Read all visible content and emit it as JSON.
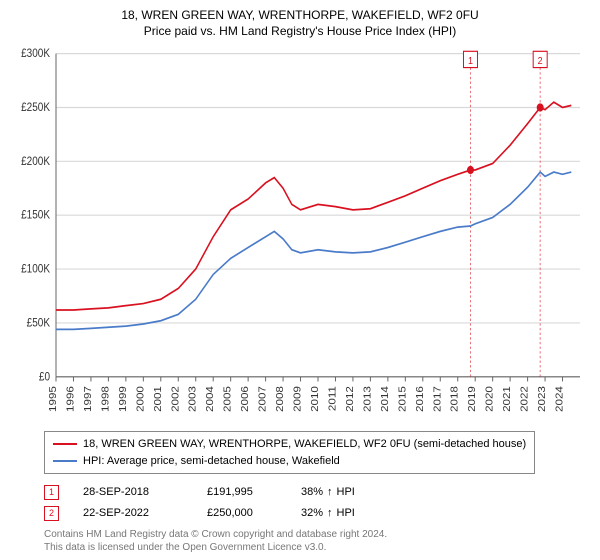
{
  "title": "18, WREN GREEN WAY, WRENTHORPE, WAKEFIELD, WF2 0FU",
  "subtitle": "Price paid vs. HM Land Registry's House Price Index (HPI)",
  "chart": {
    "type": "line",
    "background_color": "#ffffff",
    "grid_color": "#d9d9d9",
    "axis_color": "#666666",
    "title_fontsize": 12,
    "label_fontsize": 10,
    "y_axis": {
      "min": 0,
      "max": 300000,
      "ticks": [
        0,
        50000,
        100000,
        150000,
        200000,
        250000,
        300000
      ],
      "tick_labels": [
        "£0",
        "£50K",
        "£100K",
        "£150K",
        "£200K",
        "£250K",
        "£300K"
      ]
    },
    "x_axis": {
      "min": 1995,
      "max": 2025,
      "ticks": [
        1995,
        1996,
        1997,
        1998,
        1999,
        2000,
        2001,
        2002,
        2003,
        2004,
        2005,
        2006,
        2007,
        2008,
        2009,
        2010,
        2011,
        2012,
        2013,
        2014,
        2015,
        2016,
        2017,
        2018,
        2019,
        2020,
        2021,
        2022,
        2023,
        2024
      ]
    },
    "series": [
      {
        "name": "property",
        "label": "18, WREN GREEN WAY, WRENTHORPE, WAKEFIELD, WF2 0FU (semi-detached house)",
        "color": "#d9101f",
        "line_width": 1.5,
        "data": [
          [
            1995,
            62000
          ],
          [
            1996,
            62000
          ],
          [
            1997,
            63000
          ],
          [
            1998,
            64000
          ],
          [
            1999,
            66000
          ],
          [
            2000,
            68000
          ],
          [
            2001,
            72000
          ],
          [
            2002,
            82000
          ],
          [
            2003,
            100000
          ],
          [
            2004,
            130000
          ],
          [
            2005,
            155000
          ],
          [
            2006,
            165000
          ],
          [
            2007,
            180000
          ],
          [
            2007.5,
            185000
          ],
          [
            2008,
            175000
          ],
          [
            2008.5,
            160000
          ],
          [
            2009,
            155000
          ],
          [
            2010,
            160000
          ],
          [
            2011,
            158000
          ],
          [
            2012,
            155000
          ],
          [
            2013,
            156000
          ],
          [
            2014,
            162000
          ],
          [
            2015,
            168000
          ],
          [
            2016,
            175000
          ],
          [
            2017,
            182000
          ],
          [
            2018,
            188000
          ],
          [
            2018.73,
            191995
          ],
          [
            2019,
            192000
          ],
          [
            2020,
            198000
          ],
          [
            2021,
            215000
          ],
          [
            2022,
            235000
          ],
          [
            2022.72,
            250000
          ],
          [
            2023,
            248000
          ],
          [
            2023.5,
            255000
          ],
          [
            2024,
            250000
          ],
          [
            2024.5,
            252000
          ]
        ]
      },
      {
        "name": "hpi",
        "label": "HPI: Average price, semi-detached house, Wakefield",
        "color": "#4a7bc9",
        "line_width": 1.5,
        "data": [
          [
            1995,
            44000
          ],
          [
            1996,
            44000
          ],
          [
            1997,
            45000
          ],
          [
            1998,
            46000
          ],
          [
            1999,
            47000
          ],
          [
            2000,
            49000
          ],
          [
            2001,
            52000
          ],
          [
            2002,
            58000
          ],
          [
            2003,
            72000
          ],
          [
            2004,
            95000
          ],
          [
            2005,
            110000
          ],
          [
            2006,
            120000
          ],
          [
            2007,
            130000
          ],
          [
            2007.5,
            135000
          ],
          [
            2008,
            128000
          ],
          [
            2008.5,
            118000
          ],
          [
            2009,
            115000
          ],
          [
            2010,
            118000
          ],
          [
            2011,
            116000
          ],
          [
            2012,
            115000
          ],
          [
            2013,
            116000
          ],
          [
            2014,
            120000
          ],
          [
            2015,
            125000
          ],
          [
            2016,
            130000
          ],
          [
            2017,
            135000
          ],
          [
            2018,
            139000
          ],
          [
            2018.73,
            140000
          ],
          [
            2019,
            142000
          ],
          [
            2020,
            148000
          ],
          [
            2021,
            160000
          ],
          [
            2022,
            176000
          ],
          [
            2022.72,
            190000
          ],
          [
            2023,
            186000
          ],
          [
            2023.5,
            190000
          ],
          [
            2024,
            188000
          ],
          [
            2024.5,
            190000
          ]
        ]
      }
    ],
    "markers": [
      {
        "id": "1",
        "x": 2018.73,
        "y": 191995,
        "box_color": "#d9101f",
        "vline_color": "#d9101f",
        "vline_dash": "2,2"
      },
      {
        "id": "2",
        "x": 2022.72,
        "y": 250000,
        "box_color": "#d9101f",
        "vline_color": "#d9101f",
        "vline_dash": "2,2"
      }
    ]
  },
  "legend": {
    "border_color": "#888888",
    "fontsize": 11,
    "items": [
      {
        "color": "#d9101f",
        "label": "18, WREN GREEN WAY, WRENTHORPE, WAKEFIELD, WF2 0FU (semi-detached house)"
      },
      {
        "color": "#4a7bc9",
        "label": "HPI: Average price, semi-detached house, Wakefield"
      }
    ]
  },
  "sales": [
    {
      "marker": "1",
      "marker_color": "#d9101f",
      "date": "28-SEP-2018",
      "price": "£191,995",
      "pct": "38%",
      "arrow": "↑",
      "suffix": "HPI"
    },
    {
      "marker": "2",
      "marker_color": "#d9101f",
      "date": "22-SEP-2022",
      "price": "£250,000",
      "pct": "32%",
      "arrow": "↑",
      "suffix": "HPI"
    }
  ],
  "footer": {
    "line1": "Contains HM Land Registry data © Crown copyright and database right 2024.",
    "line2": "This data is licensed under the Open Government Licence v3.0.",
    "color": "#777777"
  }
}
